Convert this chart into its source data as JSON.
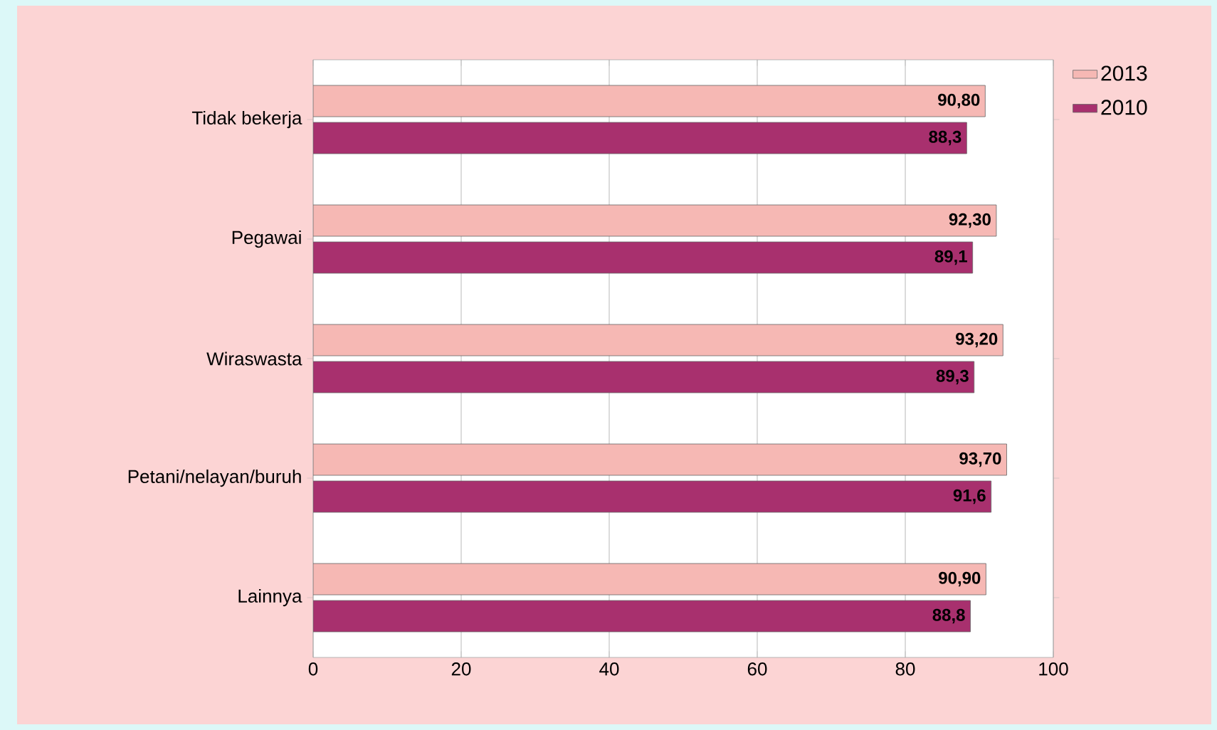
{
  "chart_data": {
    "type": "bar",
    "orientation": "horizontal",
    "categories": [
      "Tidak bekerja",
      "Pegawai",
      "Wiraswasta",
      "Petani/nelayan/buruh",
      "Lainnya"
    ],
    "series": [
      {
        "name": "2013",
        "color": "#f6b8b4",
        "values": [
          90.8,
          92.3,
          93.2,
          93.7,
          90.9
        ],
        "value_labels": [
          "90,80",
          "92,30",
          "93,20",
          "93,70",
          "90,90"
        ]
      },
      {
        "name": "2010",
        "color": "#a8306e",
        "values": [
          88.3,
          89.1,
          89.3,
          91.6,
          88.8
        ],
        "value_labels": [
          "88,3",
          "89,1",
          "89,3",
          "91,6",
          "88,8"
        ]
      }
    ],
    "xlim": [
      0,
      100
    ],
    "xticks": [
      0,
      20,
      40,
      60,
      80,
      100
    ],
    "grid": "x",
    "legend": "top right"
  }
}
